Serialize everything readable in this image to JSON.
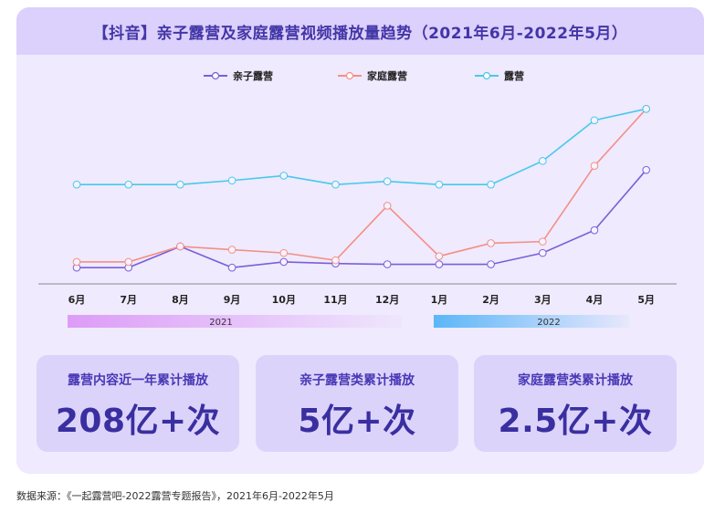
{
  "title": "【抖音】亲子露营及家庭露营视频播放量趋势（2021年6月-2022年5月）",
  "chart_data": {
    "type": "line",
    "title": "【抖音】亲子露营及家庭露营视频播放量趋势（2021年6月-2022年5月）",
    "categories": [
      "6月",
      "7月",
      "8月",
      "9月",
      "10月",
      "11月",
      "12月",
      "1月",
      "2月",
      "3月",
      "4月",
      "5月"
    ],
    "year_bands": [
      {
        "label": "2021",
        "color": "#dd9cf7"
      },
      {
        "label": "2022",
        "color": "#5cb6f7"
      }
    ],
    "series": [
      {
        "name": "亲子露营",
        "color": "#7a5fd9",
        "values": [
          20,
          20,
          46,
          20,
          27,
          25,
          24,
          24,
          24,
          38,
          66,
          140
        ]
      },
      {
        "name": "家庭露营",
        "color": "#f48f86",
        "values": [
          27,
          27,
          46,
          42,
          38,
          29,
          96,
          34,
          50,
          52,
          145,
          215
        ]
      },
      {
        "name": "露营",
        "color": "#45c9ec",
        "values": [
          122,
          122,
          122,
          127,
          133,
          122,
          126,
          122,
          122,
          151,
          201,
          215
        ]
      }
    ],
    "ylim": [
      0,
      240
    ],
    "grid": false,
    "legend": "top-center",
    "xlabel": "",
    "ylabel": ""
  },
  "stats": [
    {
      "label": "露营内容近一年累计播放",
      "value": "208亿+次"
    },
    {
      "label": "亲子露营类累计播放",
      "value": "5亿+次"
    },
    {
      "label": "家庭露营类累计播放",
      "value": "2.5亿+次"
    }
  ],
  "source": "数据来源：《一起露营吧-2022露营专题报告》，2021年6月-2022年5月"
}
